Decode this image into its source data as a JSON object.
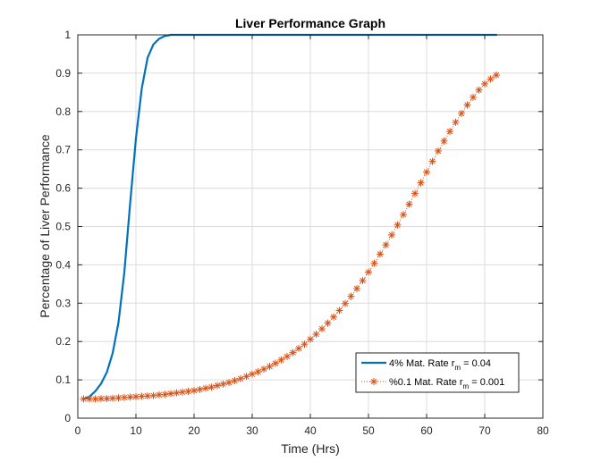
{
  "chart_data": {
    "type": "line",
    "title": "Liver Performance Graph",
    "xlabel": "Time (Hrs)",
    "ylabel": "Percentage of Liver Performance",
    "xlim": [
      0,
      80
    ],
    "ylim": [
      0,
      1
    ],
    "xticks": [
      0,
      10,
      20,
      30,
      40,
      50,
      60,
      70,
      80
    ],
    "yticks": [
      0,
      0.1,
      0.2,
      0.3,
      0.4,
      0.5,
      0.6,
      0.7,
      0.8,
      0.9,
      1
    ],
    "xtick_labels": [
      "0",
      "10",
      "20",
      "30",
      "40",
      "50",
      "60",
      "70",
      "80"
    ],
    "ytick_labels": [
      "0",
      "0.1",
      "0.2",
      "0.3",
      "0.4",
      "0.5",
      "0.6",
      "0.7",
      "0.8",
      "0.9",
      "1"
    ],
    "grid": true,
    "legend_position": "bottom-right",
    "series": [
      {
        "name": "4% Mat. Rate r_m = 0.04",
        "legend_label": "4% Mat. Rate r",
        "legend_sub": "m",
        "legend_value": " = 0.04",
        "style": "solid-line",
        "color": "#0072BD",
        "x": [
          1,
          2,
          3,
          4,
          5,
          6,
          7,
          8,
          9,
          10,
          11,
          12,
          13,
          14,
          15,
          16,
          17,
          18,
          20,
          30,
          40,
          50,
          60,
          72
        ],
        "values": [
          0.05,
          0.056,
          0.07,
          0.09,
          0.12,
          0.17,
          0.25,
          0.38,
          0.56,
          0.73,
          0.86,
          0.94,
          0.975,
          0.99,
          0.997,
          1.0,
          1.0,
          1.0,
          1.0,
          1.0,
          1.0,
          1.0,
          1.0,
          1.0
        ]
      },
      {
        "name": "%0.1 Mat. Rate r_m = 0.001",
        "legend_label": "%0.1 Mat. Rate r",
        "legend_sub": "m",
        "legend_value": " = 0.001",
        "style": "asterisk-dotted",
        "color": "#D95319",
        "x": [
          1,
          2,
          3,
          4,
          5,
          6,
          7,
          8,
          9,
          10,
          11,
          12,
          13,
          14,
          15,
          16,
          17,
          18,
          19,
          20,
          21,
          22,
          23,
          24,
          25,
          26,
          27,
          28,
          29,
          30,
          31,
          32,
          33,
          34,
          35,
          36,
          37,
          38,
          39,
          40,
          41,
          42,
          43,
          44,
          45,
          46,
          47,
          48,
          49,
          50,
          51,
          52,
          53,
          54,
          55,
          56,
          57,
          58,
          59,
          60,
          61,
          62,
          63,
          64,
          65,
          66,
          67,
          68,
          69,
          70,
          71,
          72
        ],
        "values": [
          0.05,
          0.05,
          0.05,
          0.051,
          0.051,
          0.052,
          0.053,
          0.054,
          0.055,
          0.056,
          0.057,
          0.058,
          0.059,
          0.061,
          0.062,
          0.064,
          0.066,
          0.068,
          0.07,
          0.072,
          0.075,
          0.078,
          0.081,
          0.085,
          0.089,
          0.093,
          0.098,
          0.103,
          0.109,
          0.115,
          0.121,
          0.128,
          0.135,
          0.143,
          0.152,
          0.161,
          0.171,
          0.182,
          0.193,
          0.206,
          0.219,
          0.233,
          0.248,
          0.264,
          0.281,
          0.299,
          0.318,
          0.338,
          0.359,
          0.381,
          0.404,
          0.428,
          0.452,
          0.478,
          0.504,
          0.531,
          0.558,
          0.586,
          0.614,
          0.642,
          0.67,
          0.697,
          0.723,
          0.748,
          0.772,
          0.795,
          0.817,
          0.837,
          0.856,
          0.872,
          0.885,
          0.895
        ]
      }
    ]
  }
}
